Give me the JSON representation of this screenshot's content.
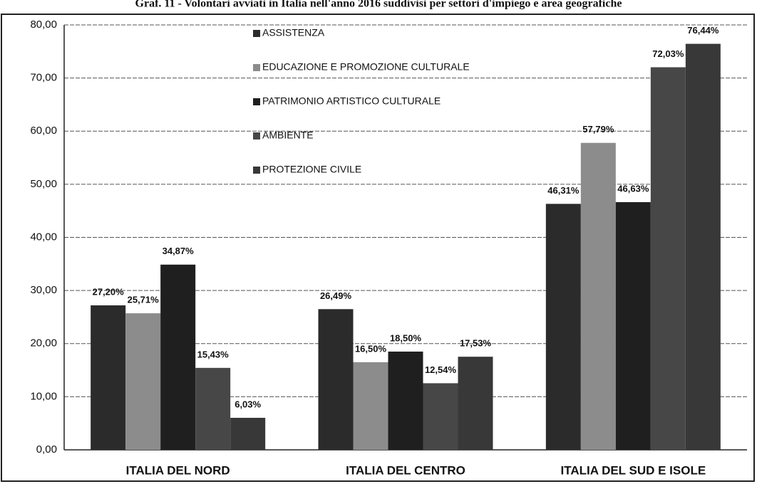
{
  "chart_data": {
    "type": "bar",
    "title": "Graf. 11 - Volontari avviati in Italia nell'anno 2016 suddivisi per settori d'impiego e area geografiche",
    "categories": [
      "ITALIA DEL NORD",
      "ITALIA DEL CENTRO",
      "ITALIA DEL SUD E ISOLE"
    ],
    "series": [
      {
        "name": "ASSISTENZA",
        "color": "#2b2b2b",
        "values": [
          27.2,
          26.49,
          46.31
        ],
        "value_labels": [
          "27,20%",
          "26,49%",
          "46,31%"
        ]
      },
      {
        "name": "EDUCAZIONE E PROMOZIONE CULTURALE",
        "color": "#8c8c8c",
        "values": [
          25.71,
          16.5,
          57.79
        ],
        "value_labels": [
          "25,71%",
          "16,50%",
          "57,79%"
        ]
      },
      {
        "name": "PATRIMONIO ARTISTICO CULTURALE",
        "color": "#1f1f1f",
        "values": [
          34.87,
          18.5,
          46.63
        ],
        "value_labels": [
          "34,87%",
          "18,50%",
          "46,63%"
        ]
      },
      {
        "name": "AMBIENTE",
        "color": "#474747",
        "values": [
          15.43,
          12.54,
          72.03
        ],
        "value_labels": [
          "15,43%",
          "12,54%",
          "72,03%"
        ]
      },
      {
        "name": "PROTEZIONE CIVILE",
        "color": "#383838",
        "values": [
          6.03,
          17.53,
          76.44
        ],
        "value_labels": [
          "6,03%",
          "17,53%",
          "76,44%"
        ]
      }
    ],
    "ylim": [
      0,
      80
    ],
    "yticks": [
      {
        "value": 0,
        "label": "0,00"
      },
      {
        "value": 10,
        "label": "10,00"
      },
      {
        "value": 20,
        "label": "20,00"
      },
      {
        "value": 30,
        "label": "30,00"
      },
      {
        "value": 40,
        "label": "40,00"
      },
      {
        "value": 50,
        "label": "50,00"
      },
      {
        "value": 60,
        "label": "60,00"
      },
      {
        "value": 70,
        "label": "70,00"
      },
      {
        "value": 80,
        "label": "80,00"
      }
    ],
    "grid": true
  }
}
